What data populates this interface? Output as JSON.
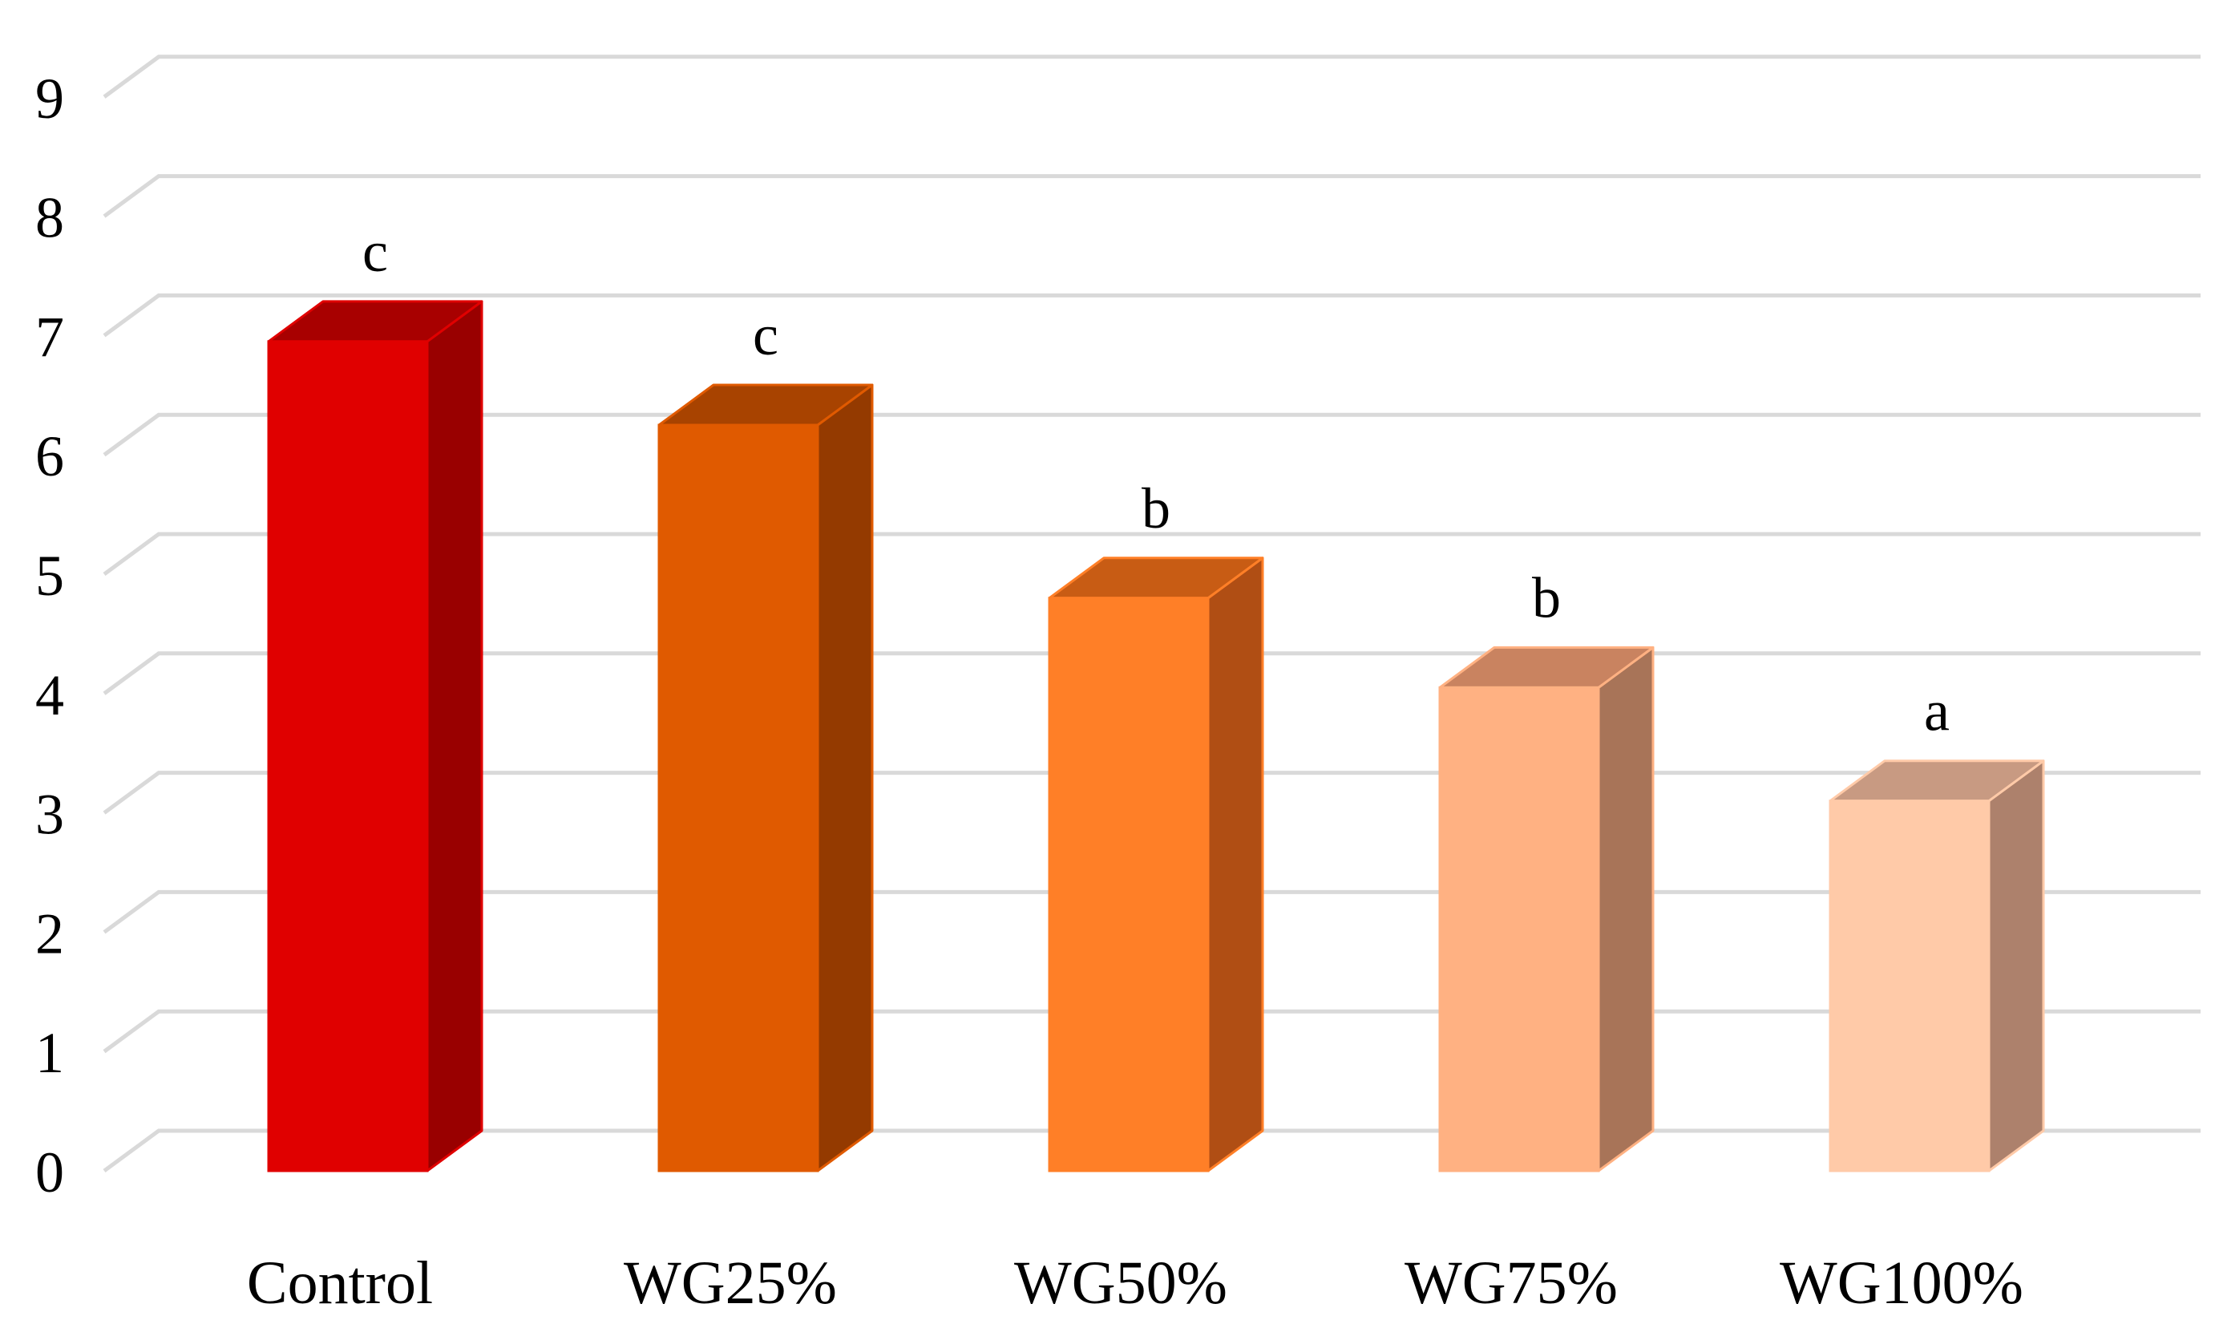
{
  "chart_data": {
    "type": "bar",
    "style": "3d-column",
    "title": "",
    "xlabel": "",
    "ylabel": "",
    "ylim": [
      0,
      9
    ],
    "yticks": [
      "0",
      "1",
      "2",
      "3",
      "4",
      "5",
      "6",
      "7",
      "8",
      "9"
    ],
    "grid": true,
    "legend": "none",
    "categories": [
      "Control",
      "WG25%",
      "WG50%",
      "WG75%",
      "WG100%"
    ],
    "values": [
      6.95,
      6.25,
      4.8,
      4.05,
      3.1
    ],
    "significance": [
      "c",
      "c",
      "b",
      "b",
      "a"
    ],
    "colors": [
      {
        "front": "#e00000",
        "top": "#a80000",
        "side": "#990000"
      },
      {
        "front": "#e05a00",
        "top": "#a84300",
        "side": "#943a00"
      },
      {
        "front": "#ff7f27",
        "top": "#c85c14",
        "side": "#b04e14"
      },
      {
        "front": "#ffb182",
        "top": "#c98360",
        "side": "#a87458"
      },
      {
        "front": "#ffcaa8",
        "top": "#c89a82",
        "side": "#ad816c"
      }
    ],
    "grid_color": "#d9d9d9"
  }
}
